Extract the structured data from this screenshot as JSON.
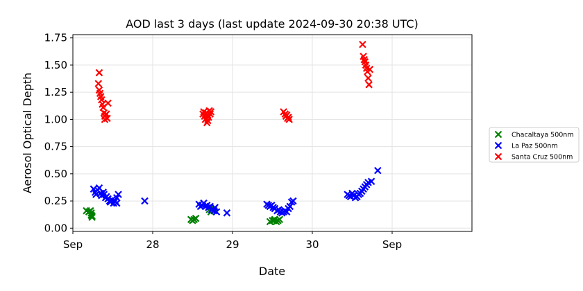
{
  "chart_data": {
    "type": "scatter",
    "title": "AOD last 3 days (last update 2024-09-30 20:38 UTC)",
    "xlabel": "Date",
    "ylabel": "Aerosol Optical Depth",
    "xlim": [
      26.0,
      31.0
    ],
    "ylim": [
      -0.03,
      1.78
    ],
    "grid": true,
    "legend_position": "outside-right",
    "x_ticks": [
      {
        "x": 26.0,
        "label": "Sep"
      },
      {
        "x": 27.0,
        "label": "28"
      },
      {
        "x": 28.0,
        "label": "29"
      },
      {
        "x": 29.0,
        "label": "30"
      },
      {
        "x": 30.0,
        "label": "Sep"
      }
    ],
    "y_ticks": [
      {
        "y": 0.0,
        "label": "0.00"
      },
      {
        "y": 0.25,
        "label": "0.25"
      },
      {
        "y": 0.5,
        "label": "0.50"
      },
      {
        "y": 0.75,
        "label": "0.75"
      },
      {
        "y": 1.0,
        "label": "1.00"
      },
      {
        "y": 1.25,
        "label": "1.25"
      },
      {
        "y": 1.5,
        "label": "1.50"
      },
      {
        "y": 1.75,
        "label": "1.75"
      }
    ],
    "series": [
      {
        "name": "Chacaltaya 500nm",
        "color": "#008000",
        "marker": "x",
        "points": [
          [
            26.17,
            0.16
          ],
          [
            26.2,
            0.15
          ],
          [
            26.22,
            0.16
          ],
          [
            26.23,
            0.14
          ],
          [
            26.23,
            0.12
          ],
          [
            26.24,
            0.11
          ],
          [
            26.24,
            0.1
          ],
          [
            27.48,
            0.08
          ],
          [
            27.5,
            0.07
          ],
          [
            27.52,
            0.08
          ],
          [
            27.54,
            0.09
          ],
          [
            27.71,
            0.17
          ],
          [
            27.73,
            0.15
          ],
          [
            27.77,
            0.18
          ],
          [
            28.47,
            0.06
          ],
          [
            28.5,
            0.07
          ],
          [
            28.52,
            0.07
          ],
          [
            28.53,
            0.08
          ],
          [
            28.55,
            0.06
          ],
          [
            28.57,
            0.07
          ],
          [
            28.59,
            0.08
          ]
        ]
      },
      {
        "name": "La Paz 500nm",
        "color": "#0000ff",
        "marker": "x",
        "points": [
          [
            26.26,
            0.36
          ],
          [
            26.28,
            0.33
          ],
          [
            26.29,
            0.31
          ],
          [
            26.31,
            0.35
          ],
          [
            26.33,
            0.37
          ],
          [
            26.35,
            0.32
          ],
          [
            26.36,
            0.3
          ],
          [
            26.38,
            0.33
          ],
          [
            26.39,
            0.31
          ],
          [
            26.41,
            0.28
          ],
          [
            26.42,
            0.29
          ],
          [
            26.44,
            0.27
          ],
          [
            26.46,
            0.25
          ],
          [
            26.47,
            0.24
          ],
          [
            26.49,
            0.26
          ],
          [
            26.51,
            0.23
          ],
          [
            26.53,
            0.25
          ],
          [
            26.55,
            0.28
          ],
          [
            26.57,
            0.31
          ],
          [
            26.55,
            0.23
          ],
          [
            26.9,
            0.25
          ],
          [
            27.58,
            0.22
          ],
          [
            27.6,
            0.2
          ],
          [
            27.62,
            0.21
          ],
          [
            27.64,
            0.23
          ],
          [
            27.66,
            0.2
          ],
          [
            27.68,
            0.21
          ],
          [
            27.7,
            0.19
          ],
          [
            27.72,
            0.2
          ],
          [
            27.74,
            0.17
          ],
          [
            27.77,
            0.16
          ],
          [
            27.8,
            0.15
          ],
          [
            27.78,
            0.19
          ],
          [
            27.93,
            0.14
          ],
          [
            28.43,
            0.22
          ],
          [
            28.45,
            0.21
          ],
          [
            28.47,
            0.2
          ],
          [
            28.49,
            0.21
          ],
          [
            28.51,
            0.19
          ],
          [
            28.53,
            0.18
          ],
          [
            28.56,
            0.16
          ],
          [
            28.58,
            0.17
          ],
          [
            28.6,
            0.15
          ],
          [
            28.62,
            0.14
          ],
          [
            28.64,
            0.15
          ],
          [
            28.66,
            0.16
          ],
          [
            28.68,
            0.15
          ],
          [
            28.7,
            0.18
          ],
          [
            28.72,
            0.2
          ],
          [
            28.74,
            0.24
          ],
          [
            28.76,
            0.25
          ],
          [
            29.44,
            0.31
          ],
          [
            29.46,
            0.3
          ],
          [
            29.48,
            0.29
          ],
          [
            29.5,
            0.32
          ],
          [
            29.52,
            0.3
          ],
          [
            29.54,
            0.28
          ],
          [
            29.56,
            0.29
          ],
          [
            29.58,
            0.31
          ],
          [
            29.6,
            0.32
          ],
          [
            29.62,
            0.34
          ],
          [
            29.64,
            0.36
          ],
          [
            29.66,
            0.38
          ],
          [
            29.68,
            0.4
          ],
          [
            29.7,
            0.42
          ],
          [
            29.74,
            0.43
          ],
          [
            29.82,
            0.53
          ]
        ]
      },
      {
        "name": "Santa Cruz 500nm",
        "color": "#ff0000",
        "marker": "x",
        "points": [
          [
            26.33,
            1.43
          ],
          [
            26.32,
            1.33
          ],
          [
            26.33,
            1.27
          ],
          [
            26.34,
            1.24
          ],
          [
            26.35,
            1.21
          ],
          [
            26.36,
            1.18
          ],
          [
            26.37,
            1.14
          ],
          [
            26.38,
            1.11
          ],
          [
            26.39,
            1.06
          ],
          [
            26.4,
            1.03
          ],
          [
            26.4,
            1.0
          ],
          [
            26.42,
            1.05
          ],
          [
            26.43,
            1.01
          ],
          [
            26.44,
            1.15
          ],
          [
            27.63,
            1.05
          ],
          [
            27.64,
            1.07
          ],
          [
            27.65,
            1.03
          ],
          [
            27.66,
            1.0
          ],
          [
            27.67,
            1.06
          ],
          [
            27.68,
            0.97
          ],
          [
            27.69,
            1.04
          ],
          [
            27.7,
            1.02
          ],
          [
            27.71,
            1.08
          ],
          [
            27.72,
            1.05
          ],
          [
            27.73,
            1.07
          ],
          [
            27.69,
            0.99
          ],
          [
            28.64,
            1.07
          ],
          [
            28.66,
            1.05
          ],
          [
            28.67,
            1.03
          ],
          [
            28.68,
            1.04
          ],
          [
            28.69,
            1.01
          ],
          [
            28.7,
            1.02
          ],
          [
            28.71,
            1.0
          ],
          [
            29.63,
            1.69
          ],
          [
            29.64,
            1.58
          ],
          [
            29.65,
            1.55
          ],
          [
            29.66,
            1.53
          ],
          [
            29.67,
            1.5
          ],
          [
            29.68,
            1.47
          ],
          [
            29.69,
            1.44
          ],
          [
            29.7,
            1.38
          ],
          [
            29.71,
            1.32
          ],
          [
            29.72,
            1.46
          ]
        ]
      }
    ]
  }
}
